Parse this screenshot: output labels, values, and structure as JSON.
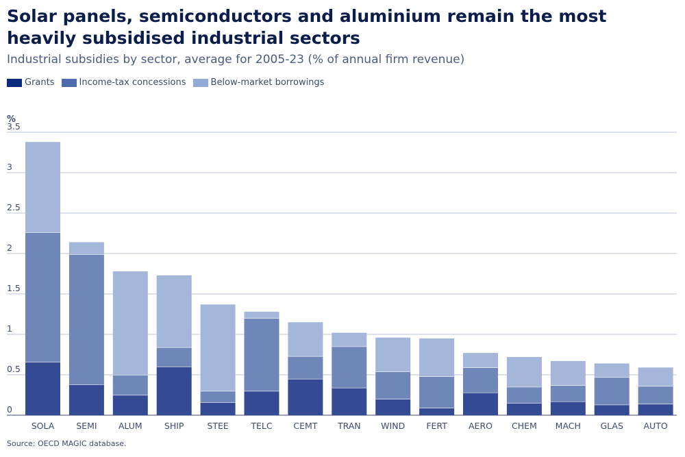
{
  "chart_data": {
    "type": "bar",
    "stacked": true,
    "title": "Solar panels, semiconductors and aluminium remain the most heavily subsidised industrial sectors",
    "subtitle": "Industrial subsidies by sector, average for 2005-23 (% of annual firm revenue)",
    "ylabel": "%",
    "xlabel": "",
    "ylim": [
      0,
      3.5
    ],
    "yticks": [
      "0",
      "0.5",
      "1",
      "1.5",
      "2",
      "2.5",
      "3",
      "3.5"
    ],
    "ytick_values": [
      0,
      0.5,
      1,
      1.5,
      2,
      2.5,
      3,
      3.5
    ],
    "categories": [
      "SOLA",
      "SEMI",
      "ALUM",
      "SHIP",
      "STEE",
      "TELC",
      "CEMT",
      "TRAN",
      "WIND",
      "FERT",
      "AERO",
      "CHEM",
      "MACH",
      "GLAS",
      "AUTO"
    ],
    "series": [
      {
        "name": "Grants",
        "color": "#344a93",
        "values": [
          0.66,
          0.38,
          0.25,
          0.6,
          0.16,
          0.3,
          0.45,
          0.34,
          0.2,
          0.09,
          0.28,
          0.15,
          0.17,
          0.13,
          0.14
        ]
      },
      {
        "name": "Income-tax concessions",
        "color": "#6e86b8",
        "values": [
          1.6,
          1.61,
          0.25,
          0.24,
          0.14,
          0.9,
          0.28,
          0.51,
          0.34,
          0.39,
          0.31,
          0.2,
          0.2,
          0.34,
          0.22
        ]
      },
      {
        "name": "Below-market borrowings",
        "color": "#a4b7d8",
        "values": [
          1.12,
          0.15,
          1.28,
          0.89,
          1.07,
          0.08,
          0.42,
          0.17,
          0.42,
          0.47,
          0.18,
          0.37,
          0.3,
          0.17,
          0.23
        ]
      }
    ],
    "legend_position": "top-left",
    "grid": true
  },
  "legend": {
    "items": [
      {
        "label": "Grants",
        "color": "#0b2a7a"
      },
      {
        "label": "Income-tax concessions",
        "color": "#4f6aad"
      },
      {
        "label": "Below-market borrowings",
        "color": "#93aad6"
      }
    ]
  },
  "source": "Source: OECD MAGIC database."
}
